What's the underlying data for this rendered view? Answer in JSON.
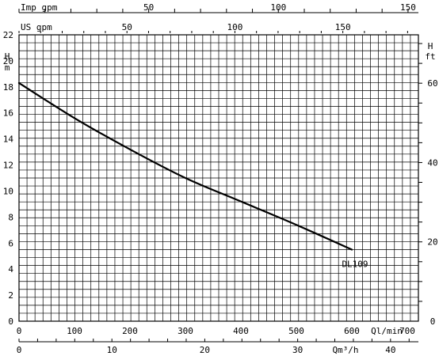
{
  "chart_data": {
    "type": "line",
    "title": "",
    "x_axes": {
      "imp_gpm": {
        "label": "Imp gpm",
        "range": [
          0,
          154
        ],
        "ticks": [
          50,
          100,
          150
        ]
      },
      "us_gpm": {
        "label": "US gpm",
        "range": [
          0,
          185
        ],
        "ticks": [
          50,
          100,
          150
        ]
      },
      "l_min": {
        "label": "Ql/min",
        "range": [
          0,
          700
        ],
        "ticks": [
          0,
          100,
          200,
          300,
          400,
          500,
          600,
          700
        ]
      },
      "m3_h": {
        "label": "Qm³/h",
        "range": [
          0,
          42
        ],
        "ticks": [
          0,
          10,
          20,
          30,
          40
        ]
      }
    },
    "y_axes": {
      "m": {
        "label": "H m",
        "range": [
          0,
          22
        ],
        "ticks": [
          0,
          2,
          4,
          6,
          8,
          10,
          12,
          14,
          16,
          18,
          20,
          22
        ]
      },
      "ft": {
        "label": "H ft",
        "range": [
          0,
          72.2
        ],
        "ticks": [
          0,
          20,
          40,
          60
        ]
      }
    },
    "grid": true,
    "series": [
      {
        "name": "DL109",
        "x_unit": "l/min",
        "y_unit": "m",
        "x": [
          0,
          100,
          200,
          300,
          400,
          500,
          600
        ],
        "y": [
          18.3,
          15.6,
          13.2,
          11.0,
          9.2,
          7.4,
          5.5
        ]
      }
    ]
  }
}
